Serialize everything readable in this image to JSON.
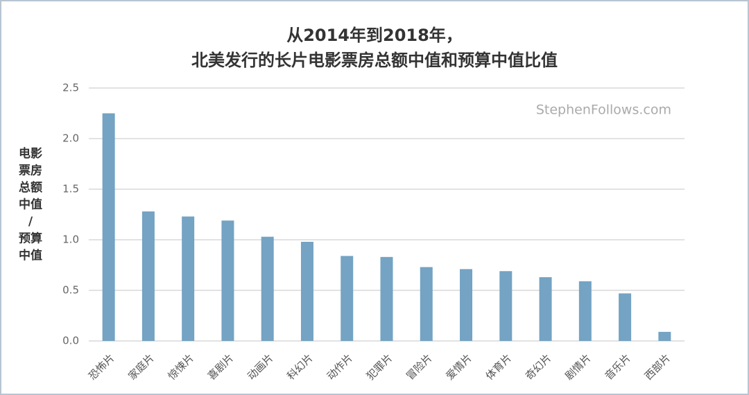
{
  "chart_data": {
    "type": "bar",
    "title": [
      "从2014年到2018年，",
      "北美发行的长片电影票房总额中值和预算中值比值"
    ],
    "ylabel": [
      "电影",
      "票房",
      "总额",
      "中值",
      "/",
      "预算",
      "中值"
    ],
    "annotation": "StephenFollows.com",
    "categories": [
      "恐怖片",
      "家庭片",
      "惊悚片",
      "喜剧片",
      "动画片",
      "科幻片",
      "动作片",
      "犯罪片",
      "冒险片",
      "爱情片",
      "体育片",
      "奇幻片",
      "剧情片",
      "音乐片",
      "西部片"
    ],
    "values": [
      2.25,
      1.28,
      1.23,
      1.19,
      1.03,
      0.98,
      0.84,
      0.83,
      0.73,
      0.71,
      0.69,
      0.63,
      0.59,
      0.47,
      0.09
    ],
    "color": "#74a3c3",
    "ylim": [
      0,
      2.5
    ],
    "yticks": [
      {
        "value": 0,
        "label": "0.0"
      },
      0.5,
      {
        "value": 1,
        "label": "1.0"
      },
      1.5,
      {
        "value": 2,
        "label": "2.0"
      },
      2.5
    ],
    "grid": true
  }
}
